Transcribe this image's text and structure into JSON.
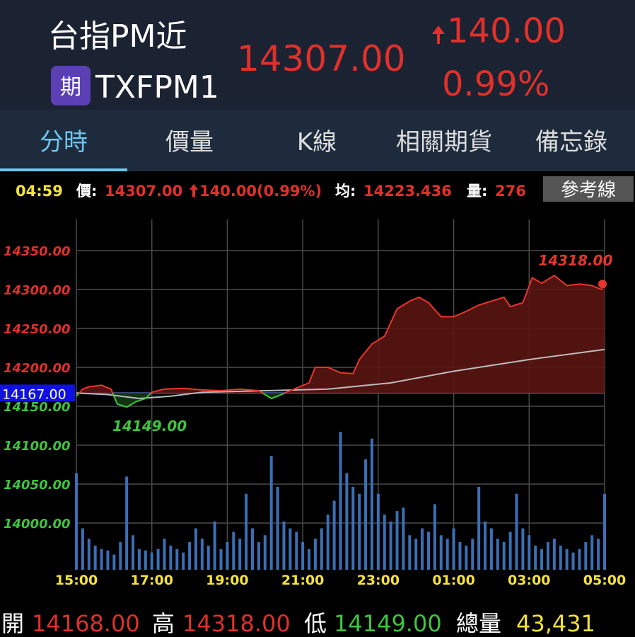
{
  "header": {
    "title": "台指PM近",
    "badge": "期",
    "code": "TXFPM1",
    "price": "14307.00",
    "change": "140.00",
    "change_pct": "0.99%"
  },
  "tabs": [
    "分時",
    "價量",
    "K線",
    "相關期貨",
    "備忘錄"
  ],
  "info": {
    "time": "04:59",
    "price_label": "價:",
    "price": "14307.00",
    "change": "140.00(0.99%)",
    "avg_label": "均:",
    "avg": "14223.436",
    "vol_label": "量:",
    "vol": "276",
    "button": "參考線"
  },
  "chart_data": {
    "type": "line",
    "reference": {
      "value": 14167,
      "label": "14167.00"
    },
    "ylim": [
      13940,
      14390
    ],
    "yticks": [
      {
        "value": 14350,
        "label": "14350.00"
      },
      {
        "value": 14300,
        "label": "14300.00"
      },
      {
        "value": 14250,
        "label": "14250.00"
      },
      {
        "value": 14200,
        "label": "14200.00"
      },
      {
        "value": 14150,
        "label": "14150.00"
      },
      {
        "value": 14100,
        "label": "14100.00"
      },
      {
        "value": 14050,
        "label": "14050.00"
      },
      {
        "value": 14000,
        "label": "14000.00"
      }
    ],
    "xlim": [
      0,
      840
    ],
    "xticks": [
      {
        "value": 0,
        "label": "15:00"
      },
      {
        "value": 120,
        "label": "17:00"
      },
      {
        "value": 240,
        "label": "19:00"
      },
      {
        "value": 360,
        "label": "21:00"
      },
      {
        "value": 480,
        "label": "23:00"
      },
      {
        "value": 600,
        "label": "01:00"
      },
      {
        "value": 720,
        "label": "03:00"
      },
      {
        "value": 840,
        "label": "05:00"
      }
    ],
    "series": [
      {
        "color": "#e8352b",
        "color_below": "#3fc43f",
        "x": [
          0,
          10,
          20,
          40,
          55,
          65,
          80,
          95,
          110,
          120,
          140,
          170,
          200,
          230,
          260,
          290,
          310,
          320,
          340,
          370,
          380,
          400,
          420,
          440,
          450,
          470,
          490,
          510,
          530,
          545,
          560,
          580,
          600,
          620,
          640,
          660,
          680,
          690,
          710,
          725,
          740,
          760,
          780,
          800,
          820,
          835,
          840
        ],
        "values": [
          14163,
          14172,
          14175,
          14177,
          14172,
          14153,
          14149,
          14156,
          14160,
          14168,
          14172,
          14173,
          14171,
          14170,
          14172,
          14170,
          14160,
          14163,
          14170,
          14180,
          14200,
          14200,
          14193,
          14192,
          14210,
          14230,
          14240,
          14275,
          14285,
          14290,
          14283,
          14265,
          14265,
          14272,
          14280,
          14285,
          14290,
          14278,
          14283,
          14315,
          14308,
          14318,
          14305,
          14307,
          14305,
          14300,
          14307
        ]
      },
      {
        "color": "#bbbbbb",
        "x": [
          0,
          50,
          100,
          150,
          200,
          300,
          400,
          500,
          600,
          720,
          840
        ],
        "values": [
          14167,
          14165,
          14160,
          14163,
          14168,
          14170,
          14172,
          14180,
          14195,
          14210,
          14223
        ]
      }
    ],
    "annotations": [
      "14318.00",
      "14149.00"
    ],
    "volume": {
      "color": "#3b6fb5",
      "x": [
        0,
        10,
        20,
        30,
        40,
        50,
        60,
        70,
        80,
        90,
        100,
        110,
        120,
        130,
        140,
        150,
        160,
        170,
        180,
        190,
        200,
        210,
        220,
        230,
        240,
        250,
        260,
        270,
        280,
        290,
        300,
        310,
        320,
        330,
        340,
        350,
        360,
        370,
        380,
        390,
        400,
        410,
        420,
        430,
        440,
        450,
        460,
        470,
        480,
        490,
        500,
        510,
        520,
        530,
        540,
        550,
        560,
        570,
        580,
        590,
        600,
        610,
        620,
        630,
        640,
        650,
        660,
        670,
        680,
        690,
        700,
        710,
        720,
        730,
        740,
        750,
        760,
        770,
        780,
        790,
        800,
        810,
        820,
        830,
        840
      ],
      "values": [
        140,
        60,
        45,
        35,
        30,
        28,
        22,
        40,
        135,
        50,
        30,
        28,
        25,
        30,
        45,
        35,
        30,
        25,
        40,
        60,
        45,
        35,
        70,
        30,
        40,
        55,
        45,
        110,
        60,
        40,
        50,
        165,
        120,
        70,
        60,
        55,
        40,
        30,
        45,
        60,
        80,
        100,
        200,
        140,
        120,
        110,
        160,
        190,
        110,
        80,
        70,
        85,
        90,
        50,
        45,
        60,
        55,
        95,
        50,
        45,
        60,
        40,
        35,
        45,
        120,
        70,
        60,
        45,
        40,
        55,
        110,
        60,
        50,
        35,
        30,
        40,
        45,
        35,
        30,
        25,
        30,
        40,
        50,
        45,
        110
      ]
    }
  },
  "footer": {
    "open_label": "開",
    "open": "14168.00",
    "high_label": "高",
    "high": "14318.00",
    "low_label": "低",
    "low": "14149.00",
    "vol_label": "總量",
    "vol": "43,431"
  }
}
